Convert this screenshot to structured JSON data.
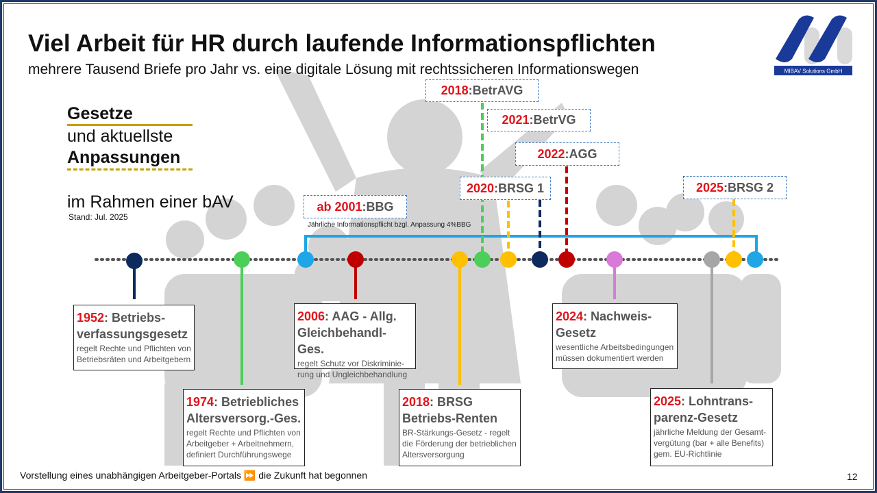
{
  "title": "Viel Arbeit für HR durch laufende Informationspflichten",
  "subtitle": "mehrere Tausend Briefe pro Jahr vs. eine digitale Lösung mit rechtssicheren Informationswegen",
  "logo": {
    "text": "MIBAV Solutions GmbH",
    "color": "#1a3a9a"
  },
  "left": {
    "line1": "Gesetze",
    "line2": "und aktuellste",
    "line3": "Anpassungen",
    "line4": "im Rahmen einer bAV",
    "stand": "Stand: Jul. 2025",
    "accent": "#c8a000"
  },
  "top_labels": [
    {
      "year": "2018",
      "sep": ": ",
      "name": "BetrAVG"
    },
    {
      "year": "2021",
      "sep": ": ",
      "name": "BetrVG"
    },
    {
      "year": "2022",
      "sep": ": ",
      "name": "AGG"
    },
    {
      "year": "2020",
      "sep": ": ",
      "name": "BRSG 1"
    },
    {
      "year": "2025",
      "sep": ": ",
      "name": "BRSG 2"
    },
    {
      "year": "ab 2001",
      "sep": ": ",
      "name": "BBG"
    }
  ],
  "bbg_note": "Jährliche Informationspflicht bzgl. Anpassung 4%BBG",
  "boxes": [
    {
      "year": "1952",
      "title": ": Betriebs-",
      "title2": "verfassungsgesetz",
      "desc": "regelt Rechte und Pflichten von Betriebsräten und Arbeitgebern"
    },
    {
      "year": "2006",
      "title": ": AAG - Allg.",
      "title2": "Gleichbehandl-Ges.",
      "desc": "regelt Schutz vor Diskriminie-rung und Ungleichbehandlung"
    },
    {
      "year": "2024",
      "title": ": Nachweis-",
      "title2": "Gesetz",
      "desc": "wesentliche Arbeitsbedingungen müssen dokumentiert werden"
    },
    {
      "year": "1974",
      "title": ": Betriebliches",
      "title2": "Altersversorg.-Ges.",
      "desc": "regelt Rechte und Pflichten von Arbeitgeber + Arbeitnehmern, definiert Durchführungswege"
    },
    {
      "year": "2018",
      "title": ": BRSG",
      "title2": "Betriebs-Renten",
      "desc": "BR-Stärkungs-Gesetz - regelt die Förderung der betrieblichen Altersversorgung"
    },
    {
      "year": "2025",
      "title": ": Lohntrans-",
      "title2": "parenz-Gesetz",
      "desc": "jährliche Meldung der Gesamt-vergütung (bar + alle Benefits) gem. EU-Richtlinie"
    }
  ],
  "colors": {
    "navy": "#0d2a5e",
    "green": "#4ccf5a",
    "lightblue": "#1ea6e6",
    "red": "#c00000",
    "yellow": "#ffc000",
    "pink": "#d97ad9",
    "gray": "#a6a6a6"
  },
  "footer": {
    "text": "Vorstellung eines unabhängigen Arbeitgeber-Portals ⏩ die Zukunft hat begonnen",
    "page": "12"
  }
}
